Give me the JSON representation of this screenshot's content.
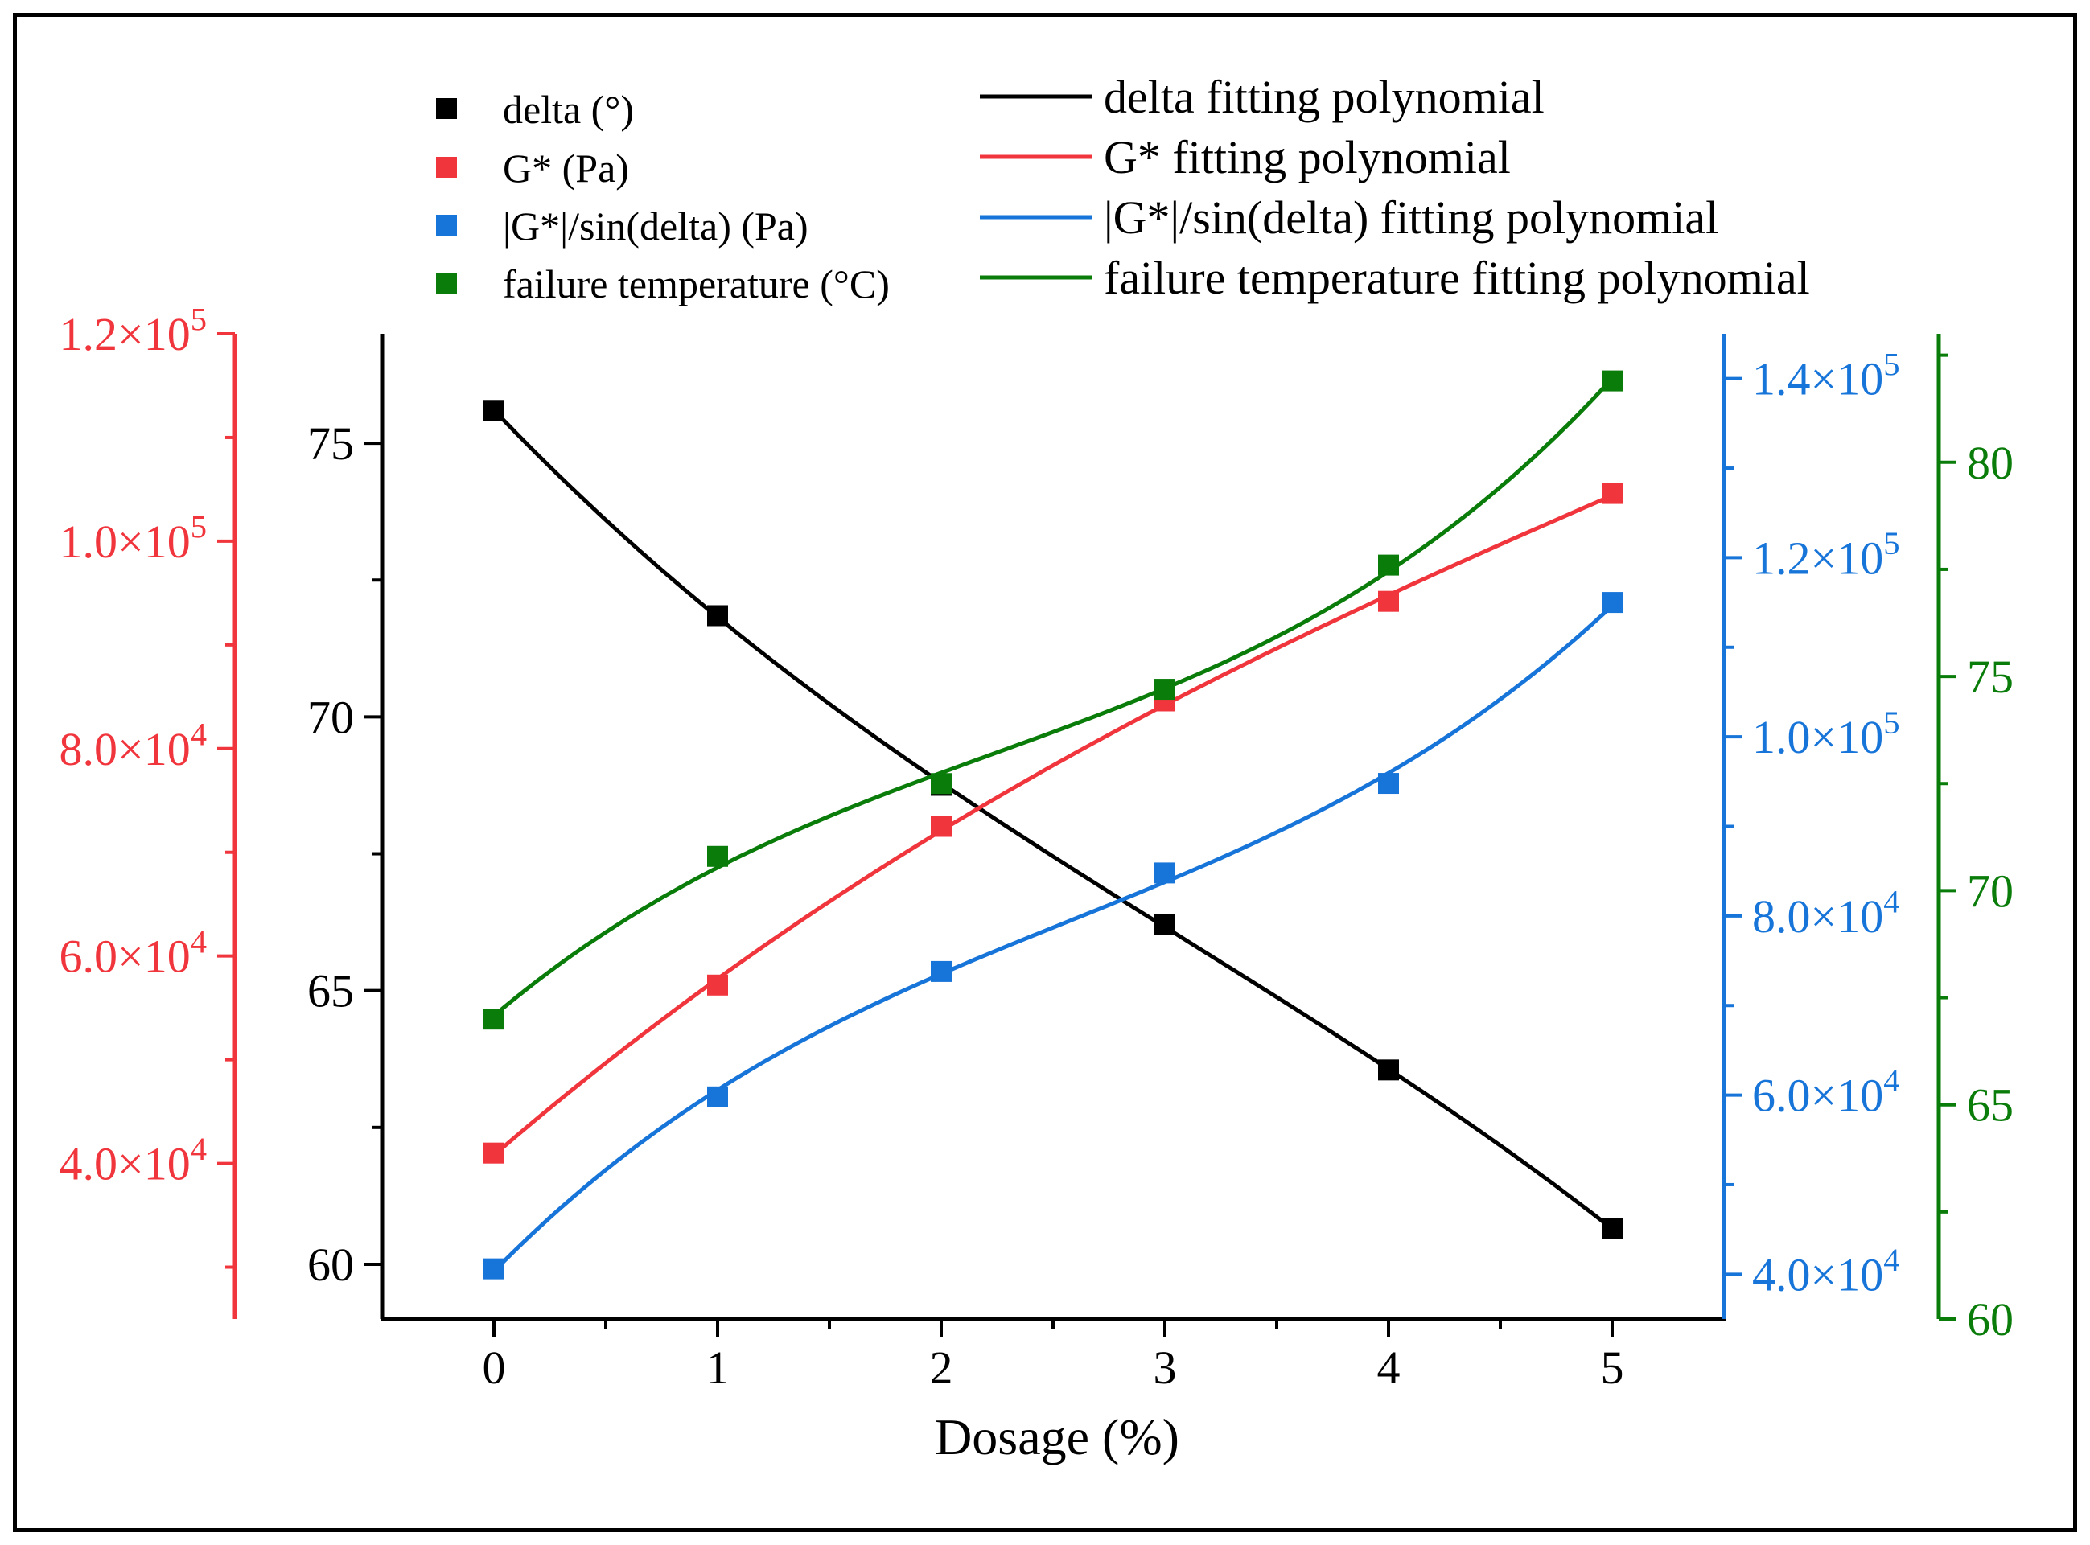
{
  "chart_data": {
    "type": "scatter",
    "xlabel": "Dosage (%)",
    "x": [
      0,
      1,
      2,
      3,
      4,
      5
    ],
    "xlim": [
      -0.5,
      5.5
    ],
    "xticks": [
      "0",
      "1",
      "2",
      "3",
      "4",
      "5"
    ],
    "axes": {
      "delta": {
        "ylim": [
          59.0,
          77.0
        ],
        "ticks": [
          60,
          65,
          70,
          75
        ],
        "tick_labels": [
          "60",
          "65",
          "70",
          "75"
        ],
        "position": "left",
        "color": "#000000"
      },
      "gstar": {
        "ylim": [
          25000,
          120000
        ],
        "ticks": [
          40000,
          60000,
          80000,
          100000,
          120000
        ],
        "tick_labels": [
          [
            "4.0×10",
            "4"
          ],
          [
            "6.0×10",
            "4"
          ],
          [
            "8.0×10",
            "4"
          ],
          [
            "1.0×10",
            "5"
          ],
          [
            "1.2×10",
            "5"
          ]
        ],
        "position": "far-left",
        "color": "#f0353c"
      },
      "ratio": {
        "ylim": [
          35000,
          145000
        ],
        "ticks": [
          40000,
          60000,
          80000,
          100000,
          120000,
          140000
        ],
        "tick_labels": [
          [
            "4.0×10",
            "4"
          ],
          [
            "6.0×10",
            "4"
          ],
          [
            "8.0×10",
            "4"
          ],
          [
            "1.0×10",
            "5"
          ],
          [
            "1.2×10",
            "5"
          ],
          [
            "1.4×10",
            "5"
          ]
        ],
        "position": "right",
        "color": "#1774d8"
      },
      "temp": {
        "ylim": [
          60.0,
          83.0
        ],
        "ticks": [
          60,
          65,
          70,
          75,
          80
        ],
        "tick_labels": [
          "60",
          "65",
          "70",
          "75",
          "80"
        ],
        "position": "far-right",
        "color": "#0a7c0a"
      }
    },
    "series": [
      {
        "name": "delta (°)",
        "fit_name": "delta fitting polynomial",
        "axis": "delta",
        "color": "#000000",
        "values": [
          75.6,
          71.85,
          68.75,
          66.2,
          63.55,
          60.65
        ]
      },
      {
        "name": "G* (Pa)",
        "fit_name": "G* fitting polynomial",
        "axis": "gstar",
        "color": "#f0353c",
        "values": [
          41000,
          57200,
          72500,
          84600,
          94200,
          104600
        ]
      },
      {
        "name": "|G*|/sin(delta) (Pa)",
        "fit_name": "|G*|/sin(delta) fitting polynomial",
        "axis": "ratio",
        "color": "#1774d8",
        "values": [
          40600,
          59800,
          73800,
          84800,
          94800,
          115000
        ]
      },
      {
        "name": "failure temperature (°C)",
        "fit_name": "failure temperature fitting polynomial",
        "axis": "temp",
        "color": "#0a7c0a",
        "values": [
          67.0,
          70.8,
          72.5,
          74.7,
          77.6,
          81.9
        ]
      }
    ],
    "legend": "top"
  }
}
